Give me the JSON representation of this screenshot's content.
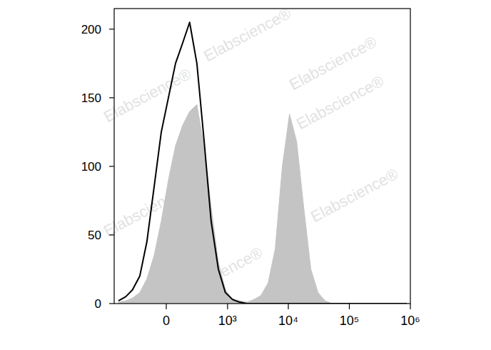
{
  "chart_data": {
    "type": "histogram",
    "log": "x",
    "watermark": "Elabscience®",
    "x": [
      -590,
      -440,
      -330,
      -235,
      -160,
      -95,
      -38,
      16,
      71,
      132,
      200,
      286,
      390,
      525,
      700,
      920,
      1210,
      1590,
      2090,
      2740,
      3570,
      4660,
      6100,
      7980,
      10460,
      13700,
      17900,
      23400,
      30700,
      40100,
      52400,
      78600,
      134000,
      298000,
      878000
    ],
    "series": [
      {
        "type": "area",
        "color": "#c4c4c4",
        "values": [
          1,
          2,
          4,
          8,
          18,
          35,
          60,
          90,
          115,
          130,
          140,
          145,
          115,
          70,
          30,
          10,
          3,
          2,
          1,
          3,
          6,
          15,
          40,
          100,
          138,
          118,
          70,
          25,
          8,
          2,
          0,
          0,
          0,
          0,
          0
        ]
      },
      {
        "type": "line",
        "color": "#000000",
        "values": [
          2,
          5,
          10,
          20,
          45,
          85,
          125,
          150,
          175,
          190,
          205,
          175,
          120,
          60,
          25,
          8,
          3,
          1,
          0,
          0,
          0,
          0,
          0,
          0,
          0,
          0,
          0,
          0,
          0,
          0,
          0,
          0,
          0,
          0,
          0
        ]
      }
    ],
    "xlim": [
      -700,
      1000000
    ],
    "xticks": [
      0,
      {
        "value": 1000,
        "label": "10³"
      },
      {
        "value": 10000,
        "label": "10⁴"
      },
      {
        "value": 100000,
        "label": "10⁵"
      },
      {
        "value": 1000000,
        "label": "10⁶"
      }
    ],
    "ylim": [
      0,
      215
    ],
    "yticks": [
      0,
      50,
      100,
      150,
      200
    ],
    "grid": false
  }
}
